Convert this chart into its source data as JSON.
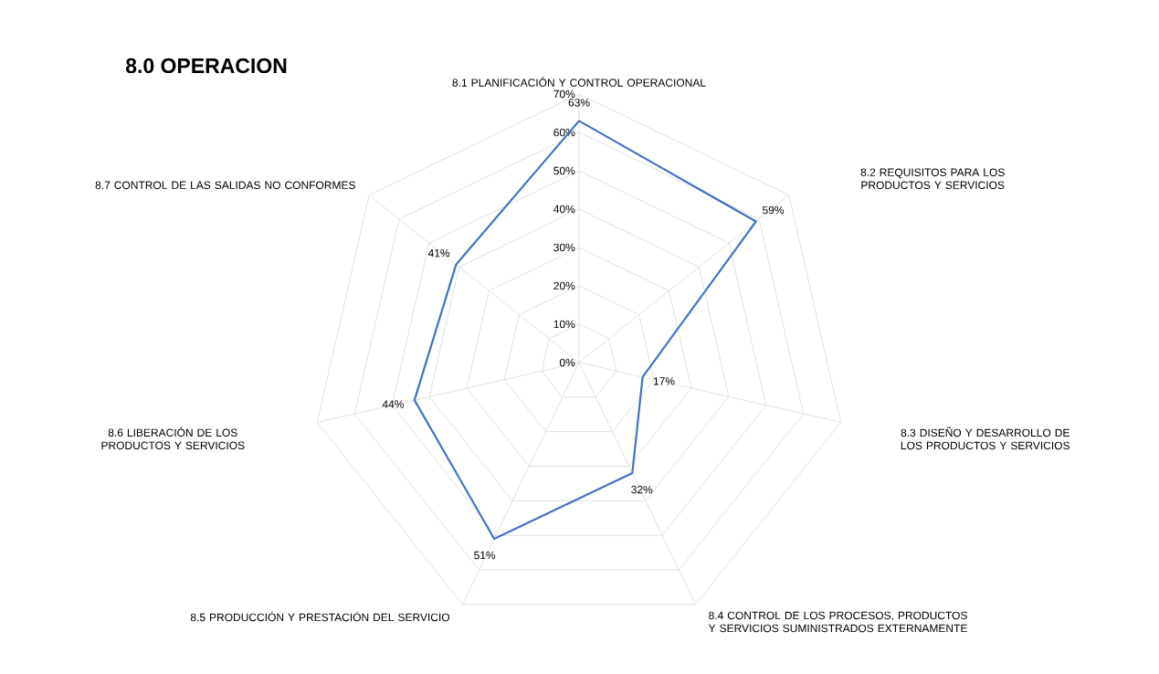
{
  "chart_data": {
    "type": "radar",
    "title": "8.0 OPERACION",
    "categories": [
      "8.1 PLANIFICACIÓN Y CONTROL OPERACIONAL",
      "8.2 REQUISITOS PARA LOS PRODUCTOS Y SERVICIOS",
      "8.3 DISEÑO Y DESARROLLO DE LOS PRODUCTOS Y SERVICIOS",
      "8.4 CONTROL DE LOS PROCESOS, PRODUCTOS Y SERVICIOS SUMINISTRADOS EXTERNAMENTE",
      "8.5 PRODUCCIÓN Y PRESTACIÓN DEL SERVICIO",
      "8.6 LIBERACIÓN DE LOS PRODUCTOS Y SERVICIOS",
      "8.7 CONTROL DE LAS SALIDAS NO CONFORMES"
    ],
    "series": [
      {
        "color": "#4472c4",
        "values": [
          63,
          59,
          17,
          32,
          51,
          44,
          41
        ],
        "value_labels": [
          "63%",
          "59%",
          "17%",
          "32%",
          "51%",
          "44%",
          "41%"
        ]
      }
    ],
    "ylim": [
      0,
      70
    ],
    "yticks": [
      {
        "value": 0,
        "label": "0%"
      },
      {
        "value": 10,
        "label": "10%"
      },
      {
        "value": 20,
        "label": "20%"
      },
      {
        "value": 30,
        "label": "30%"
      },
      {
        "value": 40,
        "label": "40%"
      },
      {
        "value": 50,
        "label": "50%"
      },
      {
        "value": 60,
        "label": "60%"
      },
      {
        "value": 70,
        "label": "70%"
      }
    ],
    "grid": true
  }
}
